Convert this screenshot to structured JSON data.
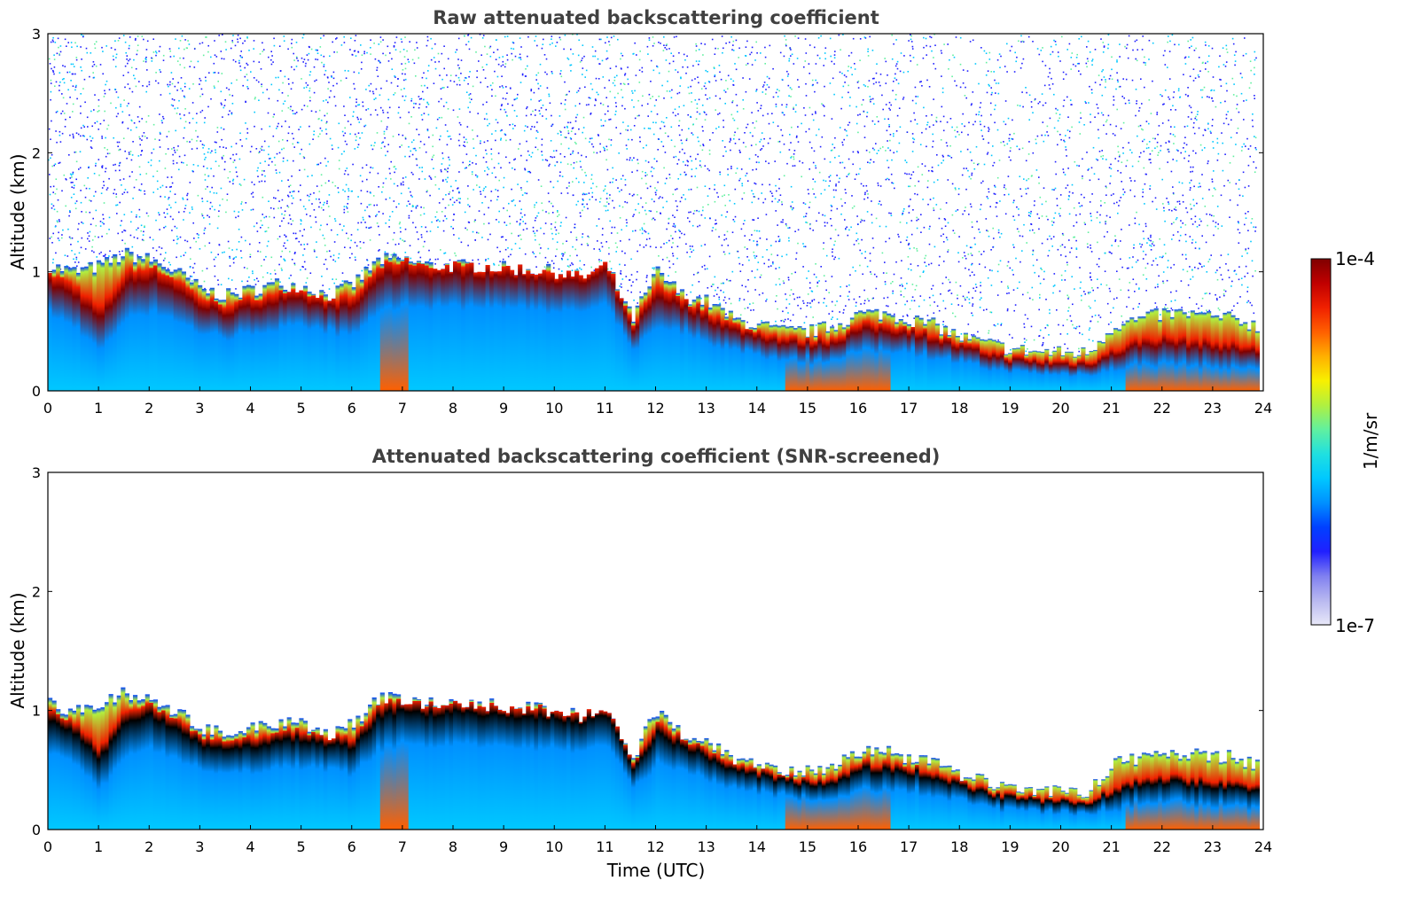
{
  "chart_data": [
    {
      "type": "heatmap",
      "title": "Raw attenuated backscattering coefficient",
      "xlabel": "",
      "ylabel": "Altitude (km)",
      "xlim": [
        0,
        24
      ],
      "ylim": [
        0,
        3
      ],
      "x_ticks": [
        "0",
        "1",
        "2",
        "3",
        "4",
        "5",
        "6",
        "7",
        "8",
        "9",
        "10",
        "11",
        "12",
        "13",
        "14",
        "15",
        "16",
        "17",
        "18",
        "19",
        "20",
        "21",
        "22",
        "23",
        "24"
      ],
      "y_ticks": [
        "0",
        "1",
        "2",
        "3"
      ],
      "noise_above_layer": true,
      "layer_top_km": {
        "x": [
          0,
          0.5,
          1,
          1.5,
          2,
          2.5,
          3,
          3.5,
          4,
          4.5,
          5,
          5.5,
          6,
          6.5,
          7,
          7.5,
          8,
          8.5,
          9,
          9.5,
          10,
          10.5,
          11,
          11.5,
          12,
          12.5,
          13,
          13.5,
          14,
          14.5,
          15,
          15.5,
          16,
          16.5,
          17,
          17.5,
          18,
          18.5,
          19,
          19.5,
          20,
          20.5,
          21,
          21.5,
          22,
          22.5,
          23,
          23.5,
          23.8
        ],
        "y": [
          1.05,
          1.0,
          1.05,
          1.15,
          1.1,
          1.0,
          0.85,
          0.8,
          0.85,
          0.9,
          0.88,
          0.8,
          0.9,
          1.1,
          1.1,
          1.05,
          1.05,
          1.05,
          1.03,
          1.02,
          1.0,
          0.95,
          1.05,
          0.6,
          1.0,
          0.8,
          0.75,
          0.6,
          0.55,
          0.5,
          0.5,
          0.55,
          0.65,
          0.65,
          0.6,
          0.55,
          0.45,
          0.4,
          0.35,
          0.33,
          0.32,
          0.32,
          0.55,
          0.6,
          0.65,
          0.65,
          0.62,
          0.6,
          0.55
        ]
      },
      "peak_layer_km": {
        "x": [
          0,
          0.5,
          1,
          1.5,
          2,
          2.5,
          3,
          3.5,
          4,
          4.5,
          5,
          5.5,
          6,
          6.5,
          7,
          7.5,
          8,
          8.5,
          9,
          9.5,
          10,
          10.5,
          11,
          11.5,
          12,
          12.5,
          13,
          13.5,
          14,
          14.5,
          15,
          15.5,
          16,
          16.5,
          17,
          17.5,
          18,
          18.5,
          19,
          19.5,
          20,
          20.5,
          21,
          21.5,
          22,
          22.5,
          23,
          23.5,
          23.8
        ],
        "y": [
          0.9,
          0.8,
          0.6,
          0.9,
          0.95,
          0.85,
          0.7,
          0.65,
          0.7,
          0.75,
          0.75,
          0.7,
          0.7,
          0.95,
          1.0,
          0.97,
          0.98,
          0.97,
          0.96,
          0.95,
          0.93,
          0.9,
          0.99,
          0.5,
          0.8,
          0.7,
          0.6,
          0.5,
          0.45,
          0.4,
          0.38,
          0.4,
          0.5,
          0.5,
          0.48,
          0.42,
          0.35,
          0.3,
          0.25,
          0.23,
          0.22,
          0.22,
          0.3,
          0.38,
          0.4,
          0.38,
          0.36,
          0.34,
          0.32
        ]
      }
    },
    {
      "type": "heatmap",
      "title": "Attenuated backscattering coefficient (SNR-screened)",
      "xlabel": "Time (UTC)",
      "ylabel": "Altitude (km)",
      "xlim": [
        0,
        24
      ],
      "ylim": [
        0,
        3
      ],
      "x_ticks": [
        "0",
        "1",
        "2",
        "3",
        "4",
        "5",
        "6",
        "7",
        "8",
        "9",
        "10",
        "11",
        "12",
        "13",
        "14",
        "15",
        "16",
        "17",
        "18",
        "19",
        "20",
        "21",
        "22",
        "23",
        "24"
      ],
      "y_ticks": [
        "0",
        "1",
        "2",
        "3"
      ],
      "noise_above_layer": false
    }
  ],
  "colorbar": {
    "label": "1/m/sr",
    "max_label": "1e-4",
    "min_label": "1e-7",
    "colors": [
      "#e8e8f8",
      "#b8b8f0",
      "#8080f0",
      "#2020ff",
      "#0040ff",
      "#0090ff",
      "#00c8ff",
      "#20e0e0",
      "#60f0a0",
      "#b0f040",
      "#f8f000",
      "#ffb000",
      "#ff6000",
      "#f02000",
      "#c00000",
      "#800000"
    ]
  }
}
